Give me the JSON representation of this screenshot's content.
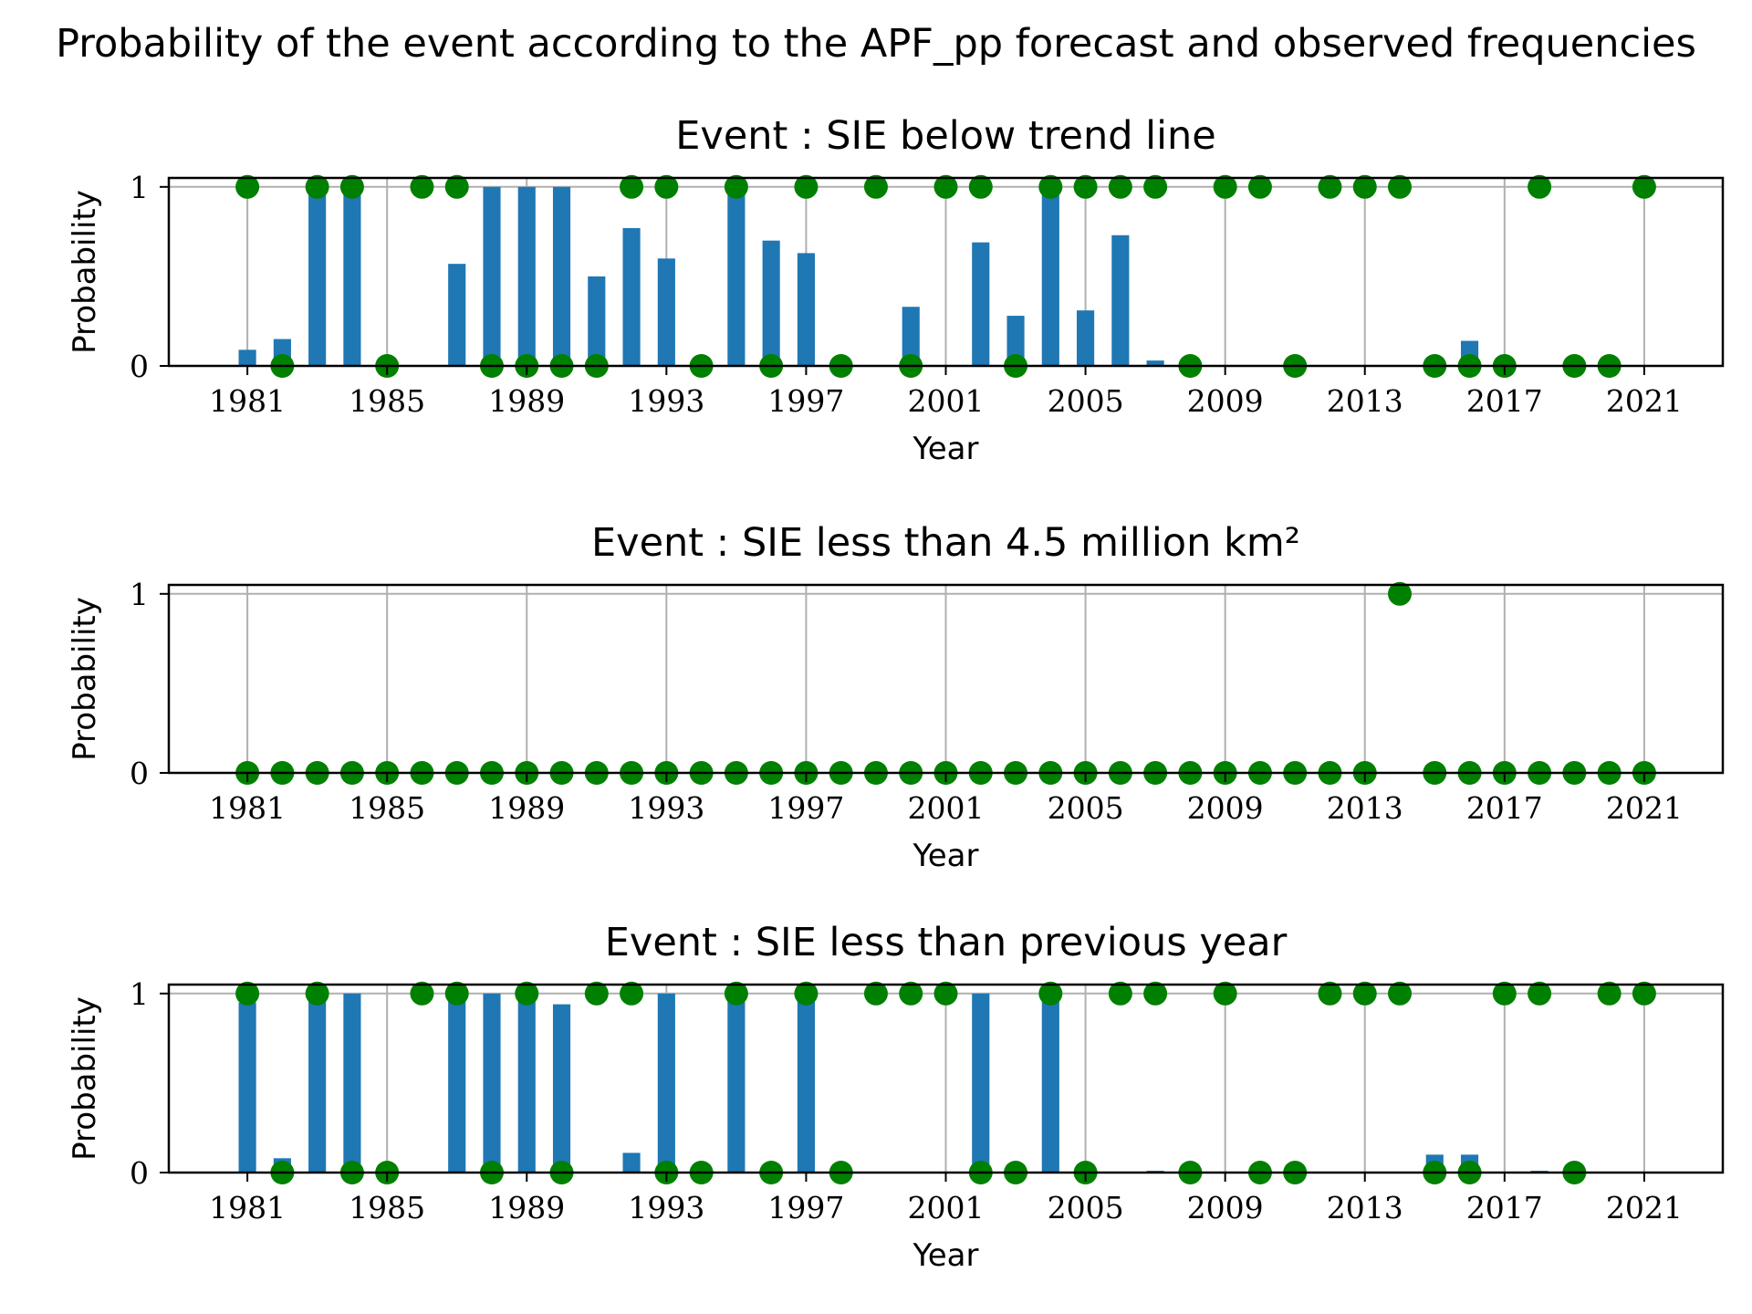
{
  "figure": {
    "title": "Probability of the event according to the APF_pp forecast and observed frequencies"
  },
  "colors": {
    "bar": "#1f77b4",
    "dot": "#008000",
    "grid": "#b0b0b0",
    "axis": "#000000"
  },
  "chart_data": [
    {
      "type": "bar",
      "title": "Event : SIE below trend line",
      "xlabel": "Year",
      "ylabel": "Probability",
      "xlim": [
        1978.75,
        2023.25
      ],
      "ylim": [
        0,
        1.05
      ],
      "xticks": [
        1981,
        1985,
        1989,
        1993,
        1997,
        2001,
        2005,
        2009,
        2013,
        2017,
        2021
      ],
      "yticks": [
        0,
        1
      ],
      "grid": true,
      "series": [
        {
          "type": "bar",
          "x": [
            1981,
            1982,
            1983,
            1984,
            1985,
            1986,
            1987,
            1988,
            1989,
            1990,
            1991,
            1992,
            1993,
            1994,
            1995,
            1996,
            1997,
            1998,
            1999,
            2000,
            2001,
            2002,
            2003,
            2004,
            2005,
            2006,
            2007,
            2008,
            2009,
            2010,
            2011,
            2012,
            2013,
            2014,
            2015,
            2016,
            2017,
            2018,
            2019,
            2020,
            2021
          ],
          "values": [
            0.09,
            0.15,
            1.0,
            1.0,
            0.0,
            0.0,
            0.57,
            1.0,
            1.0,
            1.0,
            0.5,
            0.77,
            0.6,
            0.0,
            1.0,
            0.7,
            0.63,
            0.0,
            0.0,
            0.33,
            0.0,
            0.69,
            0.28,
            1.0,
            0.31,
            0.73,
            0.03,
            0.0,
            0.0,
            0.0,
            0.0,
            0.0,
            0.0,
            0.0,
            0.0,
            0.14,
            0.0,
            0.0,
            0.0,
            0.0,
            0.0
          ]
        },
        {
          "type": "scatter",
          "x": [
            1981,
            1982,
            1983,
            1984,
            1985,
            1986,
            1987,
            1988,
            1989,
            1990,
            1991,
            1992,
            1993,
            1994,
            1995,
            1996,
            1997,
            1998,
            1999,
            2000,
            2001,
            2002,
            2003,
            2004,
            2005,
            2006,
            2007,
            2008,
            2009,
            2010,
            2011,
            2012,
            2013,
            2014,
            2015,
            2016,
            2017,
            2018,
            2019,
            2020,
            2021
          ],
          "values": [
            1,
            0,
            1,
            1,
            0,
            1,
            1,
            0,
            0,
            0,
            0,
            1,
            1,
            0,
            1,
            0,
            1,
            0,
            1,
            0,
            1,
            1,
            0,
            1,
            1,
            1,
            1,
            0,
            1,
            1,
            0,
            1,
            1,
            1,
            0,
            0,
            0,
            1,
            0,
            0,
            1
          ]
        }
      ]
    },
    {
      "type": "bar",
      "title": "Event : SIE less than 4.5 million km²",
      "xlabel": "Year",
      "ylabel": "Probability",
      "xlim": [
        1978.75,
        2023.25
      ],
      "ylim": [
        0,
        1.05
      ],
      "xticks": [
        1981,
        1985,
        1989,
        1993,
        1997,
        2001,
        2005,
        2009,
        2013,
        2017,
        2021
      ],
      "yticks": [
        0,
        1
      ],
      "grid": true,
      "series": [
        {
          "type": "bar",
          "x": [
            1981,
            1982,
            1983,
            1984,
            1985,
            1986,
            1987,
            1988,
            1989,
            1990,
            1991,
            1992,
            1993,
            1994,
            1995,
            1996,
            1997,
            1998,
            1999,
            2000,
            2001,
            2002,
            2003,
            2004,
            2005,
            2006,
            2007,
            2008,
            2009,
            2010,
            2011,
            2012,
            2013,
            2014,
            2015,
            2016,
            2017,
            2018,
            2019,
            2020,
            2021
          ],
          "values": [
            0,
            0,
            0,
            0,
            0,
            0,
            0,
            0,
            0,
            0,
            0,
            0,
            0,
            0,
            0,
            0,
            0,
            0,
            0,
            0,
            0,
            0,
            0,
            0,
            0,
            0,
            0,
            0,
            0,
            0,
            0,
            0,
            0,
            0,
            0,
            0,
            0,
            0,
            0,
            0,
            0
          ]
        },
        {
          "type": "scatter",
          "x": [
            1981,
            1982,
            1983,
            1984,
            1985,
            1986,
            1987,
            1988,
            1989,
            1990,
            1991,
            1992,
            1993,
            1994,
            1995,
            1996,
            1997,
            1998,
            1999,
            2000,
            2001,
            2002,
            2003,
            2004,
            2005,
            2006,
            2007,
            2008,
            2009,
            2010,
            2011,
            2012,
            2013,
            2014,
            2015,
            2016,
            2017,
            2018,
            2019,
            2020,
            2021
          ],
          "values": [
            0,
            0,
            0,
            0,
            0,
            0,
            0,
            0,
            0,
            0,
            0,
            0,
            0,
            0,
            0,
            0,
            0,
            0,
            0,
            0,
            0,
            0,
            0,
            0,
            0,
            0,
            0,
            0,
            0,
            0,
            0,
            0,
            0,
            1,
            0,
            0,
            0,
            0,
            0,
            0,
            0
          ]
        }
      ]
    },
    {
      "type": "bar",
      "title": "Event : SIE less than previous year",
      "xlabel": "Year",
      "ylabel": "Probability",
      "xlim": [
        1978.75,
        2023.25
      ],
      "ylim": [
        0,
        1.05
      ],
      "xticks": [
        1981,
        1985,
        1989,
        1993,
        1997,
        2001,
        2005,
        2009,
        2013,
        2017,
        2021
      ],
      "yticks": [
        0,
        1
      ],
      "grid": true,
      "series": [
        {
          "type": "bar",
          "x": [
            1981,
            1982,
            1983,
            1984,
            1985,
            1986,
            1987,
            1988,
            1989,
            1990,
            1991,
            1992,
            1993,
            1994,
            1995,
            1996,
            1997,
            1998,
            1999,
            2000,
            2001,
            2002,
            2003,
            2004,
            2005,
            2006,
            2007,
            2008,
            2009,
            2010,
            2011,
            2012,
            2013,
            2014,
            2015,
            2016,
            2017,
            2018,
            2019,
            2020,
            2021
          ],
          "values": [
            0.95,
            0.08,
            1.0,
            1.0,
            0.0,
            0.0,
            1.0,
            1.0,
            1.0,
            0.94,
            0.0,
            0.11,
            1.0,
            0.0,
            1.0,
            0.0,
            1.0,
            0.0,
            0.0,
            0.0,
            0.0,
            1.0,
            0.0,
            1.0,
            0.0,
            0.0,
            0.01,
            0.0,
            0.0,
            0.0,
            0.0,
            0.0,
            0.0,
            0.0,
            0.1,
            0.1,
            0.0,
            0.01,
            0.0,
            0.0,
            0.0
          ]
        },
        {
          "type": "scatter",
          "x": [
            1981,
            1982,
            1983,
            1984,
            1985,
            1986,
            1987,
            1988,
            1989,
            1990,
            1991,
            1992,
            1993,
            1994,
            1995,
            1996,
            1997,
            1998,
            1999,
            2000,
            2001,
            2002,
            2003,
            2004,
            2005,
            2006,
            2007,
            2008,
            2009,
            2010,
            2011,
            2012,
            2013,
            2014,
            2015,
            2016,
            2017,
            2018,
            2019,
            2020,
            2021
          ],
          "values": [
            1,
            0,
            1,
            0,
            0,
            1,
            1,
            0,
            1,
            0,
            1,
            1,
            0,
            0,
            1,
            0,
            1,
            0,
            1,
            1,
            1,
            0,
            0,
            1,
            0,
            1,
            1,
            0,
            1,
            0,
            0,
            1,
            1,
            1,
            0,
            0,
            1,
            1,
            0,
            1,
            1
          ]
        }
      ]
    }
  ]
}
